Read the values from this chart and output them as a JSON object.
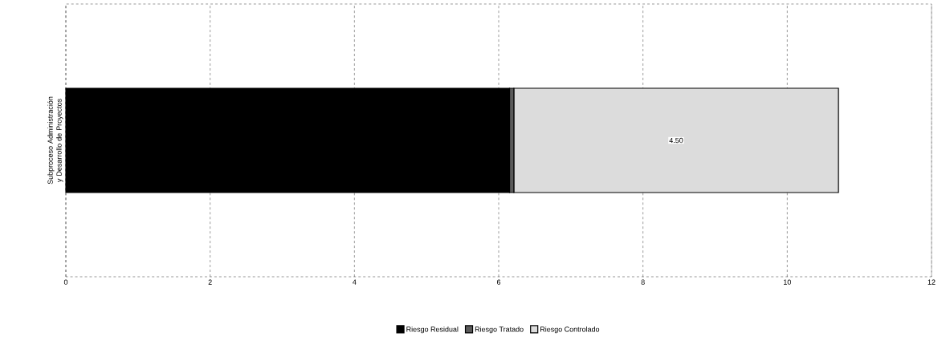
{
  "chart_data": {
    "type": "bar",
    "orientation": "horizontal",
    "stacked": true,
    "categories": [
      "Subproceso Administración y Desarrollo de Proyectos"
    ],
    "series": [
      {
        "name": "Riesgo Residual",
        "color": "#000000",
        "values": [
          6.15
        ]
      },
      {
        "name": "Riesgo Tratado",
        "color": "#5a5a5a",
        "values": [
          0.06
        ]
      },
      {
        "name": "Riesgo Controlado",
        "color": "#dcdcdc",
        "values": [
          4.5
        ],
        "value_labels": [
          "4.50"
        ]
      }
    ],
    "xlim": [
      0,
      12
    ],
    "xticks": [
      0,
      2,
      4,
      6,
      8,
      10,
      12
    ],
    "grid": "x",
    "legend": "bottom"
  }
}
